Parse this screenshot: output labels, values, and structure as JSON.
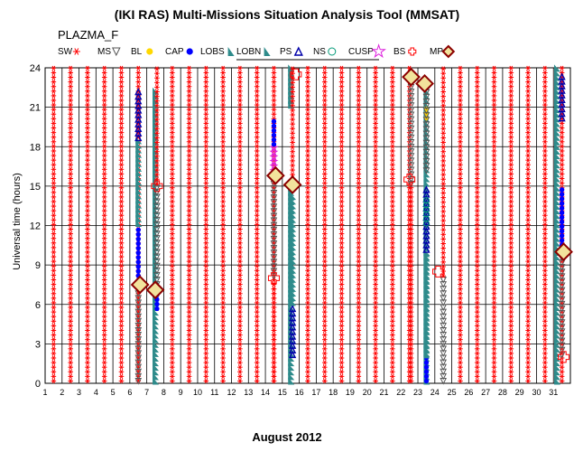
{
  "chart_data": {
    "type": "scatter",
    "title": "(IKI RAS) Multi-Missions Situation Analysis Tool (MMSAT)",
    "subtitle": "PLAZMA_F",
    "xlabel": "August 2012",
    "ylabel": "Universal time (hours)",
    "xlim": [
      1,
      32
    ],
    "ylim": [
      0,
      24
    ],
    "x_ticks": [
      1,
      2,
      3,
      4,
      5,
      6,
      7,
      8,
      9,
      10,
      11,
      12,
      13,
      14,
      15,
      16,
      17,
      18,
      19,
      20,
      21,
      22,
      23,
      24,
      25,
      26,
      27,
      28,
      29,
      30,
      31
    ],
    "y_ticks": [
      0,
      3,
      6,
      9,
      12,
      15,
      18,
      21,
      24
    ],
    "grid": true,
    "legend_placement": "top",
    "legend": [
      {
        "label": "SW",
        "marker": "asterisk",
        "color": "#ff0000"
      },
      {
        "label": "MS",
        "marker": "triangle-down",
        "color": "#555555"
      },
      {
        "label": "BL",
        "marker": "dot",
        "color": "#ffd800"
      },
      {
        "label": "CAP",
        "marker": "dot",
        "color": "#0000ff"
      },
      {
        "label": "LOBS",
        "marker": "wedge",
        "color": "#2e8b8b"
      },
      {
        "label": "LOBN",
        "marker": "wedge",
        "color": "#2e8b8b"
      },
      {
        "label": "PS",
        "marker": "triangle-up",
        "color": "#0000aa"
      },
      {
        "label": "NS",
        "marker": "circle",
        "color": "#009977"
      },
      {
        "label": "CUSP",
        "marker": "star",
        "color": "#dd22dd"
      },
      {
        "label": "BS",
        "marker": "cross",
        "color": "#ff0000"
      },
      {
        "label": "MP",
        "marker": "diamond",
        "color": "#8b0000"
      }
    ],
    "day_segments": [
      {
        "day": 1,
        "segments": [
          {
            "region": "SW",
            "from": 0,
            "to": 24
          }
        ]
      },
      {
        "day": 2,
        "segments": [
          {
            "region": "SW",
            "from": 0,
            "to": 24
          }
        ]
      },
      {
        "day": 3,
        "segments": [
          {
            "region": "SW",
            "from": 0,
            "to": 24
          }
        ]
      },
      {
        "day": 4,
        "segments": [
          {
            "region": "SW",
            "from": 0,
            "to": 24
          }
        ]
      },
      {
        "day": 5,
        "segments": [
          {
            "region": "SW",
            "from": 0,
            "to": 24
          }
        ]
      },
      {
        "day": 6,
        "segments": [
          {
            "region": "SW",
            "from": 0,
            "to": 24
          }
        ]
      },
      {
        "day": 6.5,
        "segments": [
          {
            "region": "MS",
            "from": 0,
            "to": 7.3
          },
          {
            "region": "CAP",
            "from": 7.3,
            "to": 12
          },
          {
            "region": "LOBN",
            "from": 12,
            "to": 18.5
          },
          {
            "region": "PS",
            "from": 18.5,
            "to": 22.5
          }
        ]
      },
      {
        "day": 7,
        "segments": [
          {
            "region": "LOBN",
            "from": 0,
            "to": 22.5
          }
        ]
      },
      {
        "day": 7.6,
        "segments": [
          {
            "region": "CAP",
            "from": 5.5,
            "to": 7
          },
          {
            "region": "MS",
            "from": 7,
            "to": 15
          },
          {
            "region": "SW",
            "from": 15,
            "to": 24
          }
        ]
      },
      {
        "day": 8,
        "segments": [
          {
            "region": "SW",
            "from": 0,
            "to": 24
          }
        ]
      },
      {
        "day": 9,
        "segments": [
          {
            "region": "SW",
            "from": 0,
            "to": 24
          }
        ]
      },
      {
        "day": 10,
        "segments": [
          {
            "region": "SW",
            "from": 0,
            "to": 24
          }
        ]
      },
      {
        "day": 11,
        "segments": [
          {
            "region": "SW",
            "from": 0,
            "to": 24
          }
        ]
      },
      {
        "day": 12,
        "segments": [
          {
            "region": "SW",
            "from": 0,
            "to": 24
          }
        ]
      },
      {
        "day": 13,
        "segments": [
          {
            "region": "SW",
            "from": 0,
            "to": 24
          }
        ]
      },
      {
        "day": 14,
        "segments": [
          {
            "region": "SW",
            "from": 0,
            "to": 24
          }
        ]
      },
      {
        "day": 14.5,
        "segments": [
          {
            "region": "SW",
            "from": 0,
            "to": 8
          },
          {
            "region": "MS",
            "from": 8,
            "to": 15.5
          },
          {
            "region": "CUSP",
            "from": 16,
            "to": 18
          },
          {
            "region": "CAP",
            "from": 18,
            "to": 20
          }
        ]
      },
      {
        "day": 15,
        "segments": [
          {
            "region": "LOBN",
            "from": 0,
            "to": 15
          },
          {
            "region": "LOBN",
            "from": 21,
            "to": 24
          }
        ]
      },
      {
        "day": 15.6,
        "segments": [
          {
            "region": "PS",
            "from": 2,
            "to": 6
          },
          {
            "region": "LOBS",
            "from": 6,
            "to": 14.5
          },
          {
            "region": "SW",
            "from": 15,
            "to": 24
          }
        ]
      },
      {
        "day": 16,
        "segments": [
          {
            "region": "SW",
            "from": 0,
            "to": 24
          }
        ]
      },
      {
        "day": 17,
        "segments": [
          {
            "region": "SW",
            "from": 0,
            "to": 24
          }
        ]
      },
      {
        "day": 18,
        "segments": [
          {
            "region": "SW",
            "from": 0,
            "to": 24
          }
        ]
      },
      {
        "day": 19,
        "segments": [
          {
            "region": "SW",
            "from": 0,
            "to": 24
          }
        ]
      },
      {
        "day": 20,
        "segments": [
          {
            "region": "SW",
            "from": 0,
            "to": 24
          }
        ]
      },
      {
        "day": 21,
        "segments": [
          {
            "region": "SW",
            "from": 0,
            "to": 24
          }
        ]
      },
      {
        "day": 22,
        "segments": [
          {
            "region": "SW",
            "from": 0,
            "to": 24
          }
        ]
      },
      {
        "day": 22.6,
        "segments": [
          {
            "region": "SW",
            "from": 0,
            "to": 15
          },
          {
            "region": "MS",
            "from": 15,
            "to": 23
          }
        ]
      },
      {
        "day": 23,
        "segments": [
          {
            "region": "LOBN",
            "from": 0,
            "to": 23
          }
        ]
      },
      {
        "day": 23.5,
        "segments": [
          {
            "region": "CAP",
            "from": 0,
            "to": 2
          },
          {
            "region": "LOBS",
            "from": 2,
            "to": 10
          },
          {
            "region": "PS",
            "from": 10,
            "to": 15
          },
          {
            "region": "NS",
            "from": 12,
            "to": 14
          },
          {
            "region": "BL",
            "from": 20,
            "to": 21
          },
          {
            "region": "MS",
            "from": 16,
            "to": 23
          }
        ]
      },
      {
        "day": 24,
        "segments": [
          {
            "region": "MS",
            "from": 0,
            "to": 8
          },
          {
            "region": "SW",
            "from": 8,
            "to": 24
          }
        ]
      },
      {
        "day": 25,
        "segments": [
          {
            "region": "SW",
            "from": 0,
            "to": 24
          }
        ]
      },
      {
        "day": 26,
        "segments": [
          {
            "region": "SW",
            "from": 0,
            "to": 24
          }
        ]
      },
      {
        "day": 27,
        "segments": [
          {
            "region": "SW",
            "from": 0,
            "to": 24
          }
        ]
      },
      {
        "day": 28,
        "segments": [
          {
            "region": "SW",
            "from": 0,
            "to": 24
          }
        ]
      },
      {
        "day": 29,
        "segments": [
          {
            "region": "SW",
            "from": 0,
            "to": 24
          }
        ]
      },
      {
        "day": 30,
        "segments": [
          {
            "region": "SW",
            "from": 0,
            "to": 24
          }
        ]
      },
      {
        "day": 31,
        "segments": [
          {
            "region": "SW",
            "from": 0,
            "to": 24
          }
        ]
      },
      {
        "day": 31.2,
        "segments": [
          {
            "region": "LOBN",
            "from": 0,
            "to": 24
          }
        ]
      },
      {
        "day": 31.5,
        "segments": [
          {
            "region": "MS",
            "from": 2,
            "to": 10
          },
          {
            "region": "CAP",
            "from": 10,
            "to": 15
          },
          {
            "region": "PS",
            "from": 20,
            "to": 23.5
          }
        ]
      }
    ],
    "crossings": [
      {
        "type": "MP",
        "day": 6.6,
        "ut": 7.5
      },
      {
        "type": "MP",
        "day": 7.5,
        "ut": 7.1
      },
      {
        "type": "BS",
        "day": 7.6,
        "ut": 15
      },
      {
        "type": "BS",
        "day": 14.5,
        "ut": 8
      },
      {
        "type": "MP",
        "day": 14.6,
        "ut": 15.8
      },
      {
        "type": "MP",
        "day": 15.6,
        "ut": 15.1
      },
      {
        "type": "BS",
        "day": 15.8,
        "ut": 23.5
      },
      {
        "type": "MP",
        "day": 22.6,
        "ut": 23.3
      },
      {
        "type": "BS",
        "day": 22.5,
        "ut": 15.5
      },
      {
        "type": "MP",
        "day": 23.4,
        "ut": 22.8
      },
      {
        "type": "BS",
        "day": 24.2,
        "ut": 8.5
      },
      {
        "type": "MP",
        "day": 31.6,
        "ut": 10
      },
      {
        "type": "BS",
        "day": 31.6,
        "ut": 2
      }
    ]
  }
}
